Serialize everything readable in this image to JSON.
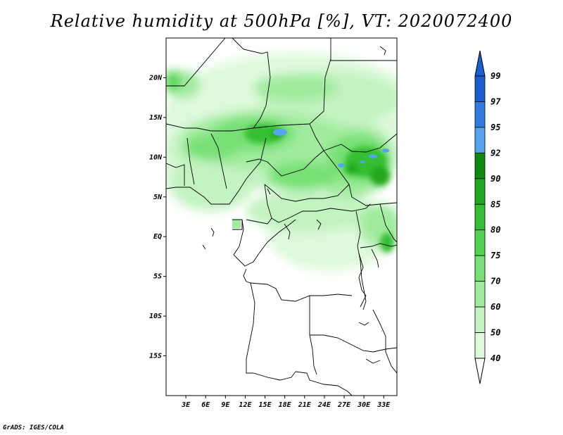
{
  "title": "Relative humidity at 500hPa [%], VT: 2020072400",
  "credit": "GrADS: IGES/COLA",
  "map": {
    "lon_ticks": [
      "3E",
      "6E",
      "9E",
      "12E",
      "15E",
      "18E",
      "21E",
      "24E",
      "27E",
      "30E",
      "33E"
    ],
    "lat_ticks": [
      "20N",
      "15N",
      "10N",
      "5N",
      "EQ",
      "5S",
      "10S",
      "15S"
    ],
    "lon_range": [
      0,
      35
    ],
    "lat_range": [
      -20,
      25
    ],
    "colors": {
      "land_border": "#000000",
      "background": "#ffffff"
    }
  },
  "legend": {
    "levels": [
      "99",
      "97",
      "95",
      "92",
      "90",
      "85",
      "80",
      "75",
      "70",
      "60",
      "50",
      "40"
    ],
    "colors": [
      "#1a5fcf",
      "#2f7be0",
      "#55a5ee",
      "#0e8a12",
      "#20a81f",
      "#36bf33",
      "#52d450",
      "#78e076",
      "#a0eb9e",
      "#c3f3c1",
      "#dff9dd",
      "#f2fdf1"
    ],
    "over_color": "#1a5fcf",
    "under_color": "#ffffff"
  }
}
